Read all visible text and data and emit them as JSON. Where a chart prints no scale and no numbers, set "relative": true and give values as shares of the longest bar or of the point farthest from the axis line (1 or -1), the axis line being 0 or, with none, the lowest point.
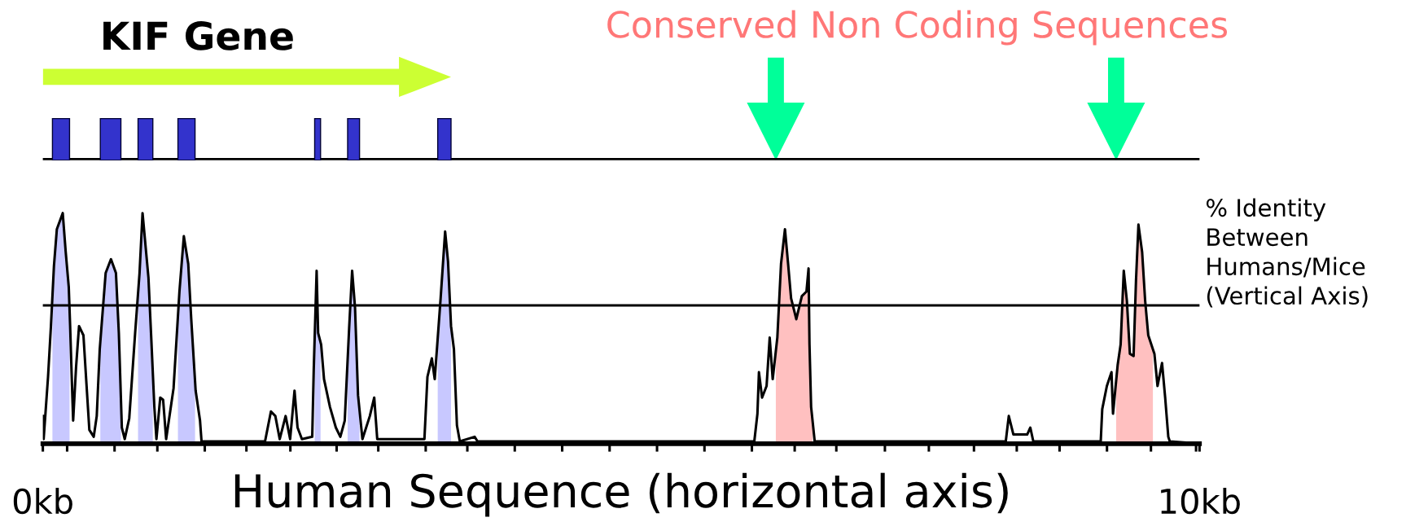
{
  "chart_data": {
    "type": "line",
    "relative": true,
    "tick_labels": "x",
    "grid": false,
    "xlabel": "Human Sequence (horizontal axis)",
    "ylabel": "% Identity\nBetween\nHumans/Mice\n(Vertical Axis)",
    "annotations": [
      "KIF Gene",
      "Conserved Non Coding Sequences"
    ],
    "xlim": [
      0,
      10
    ],
    "xticks": [
      {
        "value": 0,
        "label": "0kb"
      },
      {
        "value": 0.21,
        "label": null
      },
      {
        "value": 0.62,
        "label": null
      },
      {
        "value": 0.99,
        "label": null
      },
      {
        "value": 1.4,
        "label": null
      },
      {
        "value": 1.76,
        "label": null
      },
      {
        "value": 2.14,
        "label": null
      },
      {
        "value": 2.54,
        "label": null
      },
      {
        "value": 2.9,
        "label": null
      },
      {
        "value": 3.31,
        "label": null
      },
      {
        "value": 3.67,
        "label": null
      },
      {
        "value": 4.08,
        "label": null
      },
      {
        "value": 4.49,
        "label": null
      },
      {
        "value": 4.9,
        "label": null
      },
      {
        "value": 5.31,
        "label": null
      },
      {
        "value": 5.72,
        "label": null
      },
      {
        "value": 6.13,
        "label": null
      },
      {
        "value": 6.5,
        "label": null
      },
      {
        "value": 6.86,
        "label": null
      },
      {
        "value": 7.28,
        "label": null
      },
      {
        "value": 7.66,
        "label": null
      },
      {
        "value": 8.05,
        "label": null
      },
      {
        "value": 8.42,
        "label": null
      },
      {
        "value": 8.79,
        "label": null
      },
      {
        "value": 9.2,
        "label": null
      },
      {
        "value": 9.58,
        "label": null
      },
      {
        "value": 9.97,
        "label": null
      },
      {
        "value": 10,
        "label": "10kb"
      }
    ],
    "ref_lines": [
      {
        "axis": "y",
        "value": 0.6,
        "color": "#000000"
      }
    ],
    "series": [
      {
        "type": "area",
        "color": "#c8c8ff",
        "x": [
          0.083,
          0.096,
          0.121,
          0.172,
          0.198,
          0.224,
          0.231
        ],
        "values": [
          0.64,
          0.77,
          0.93,
          1.0,
          0.83,
          0.68,
          0.58
        ]
      },
      {
        "type": "area",
        "color": "#c8c8ff",
        "x": [
          0.497,
          0.543,
          0.589,
          0.632,
          0.657,
          0.675
        ],
        "values": [
          0.44,
          0.74,
          0.8,
          0.74,
          0.48,
          0.2
        ]
      },
      {
        "type": "area",
        "color": "#c8c8ff",
        "x": [
          0.823,
          0.836,
          0.862,
          0.913,
          0.938,
          0.951
        ],
        "values": [
          0.65,
          0.74,
          1.0,
          0.72,
          0.45,
          0.3
        ]
      },
      {
        "type": "area",
        "color": "#c8c8ff",
        "x": [
          1.168,
          1.181,
          1.219,
          1.257,
          1.283,
          1.316
        ],
        "values": [
          0.55,
          0.66,
          0.9,
          0.78,
          0.54,
          0.27
        ]
      },
      {
        "type": "area",
        "color": "#c8c8ff",
        "x": [
          2.35,
          2.367,
          2.38,
          2.401
        ],
        "values": [
          0.46,
          0.75,
          0.48,
          0.44
        ]
      },
      {
        "type": "area",
        "color": "#c8c8ff",
        "x": [
          2.635,
          2.648,
          2.674,
          2.699,
          2.725,
          2.738
        ],
        "values": [
          0.36,
          0.5,
          0.75,
          0.59,
          0.21,
          0.14
        ]
      },
      {
        "type": "area",
        "color": "#c8c8ff",
        "x": [
          3.414,
          3.439,
          3.478,
          3.503,
          3.529
        ],
        "values": [
          0.46,
          0.63,
          0.92,
          0.79,
          0.51
        ]
      },
      {
        "type": "area",
        "color": "#ffc0c0",
        "x": [
          6.337,
          6.35,
          6.382,
          6.416,
          6.443,
          6.469,
          6.514,
          6.562,
          6.602,
          6.62,
          6.628,
          6.642,
          6.655
        ],
        "values": [
          0.4,
          0.46,
          0.78,
          0.93,
          0.78,
          0.63,
          0.54,
          0.64,
          0.66,
          0.76,
          0.43,
          0.16,
          0.1
        ]
      },
      {
        "type": "area",
        "color": "#ffc0c0",
        "x": [
          9.279,
          9.292,
          9.318,
          9.345,
          9.372,
          9.398,
          9.43,
          9.451,
          9.472,
          9.504,
          9.53,
          9.557,
          9.597
        ],
        "values": [
          0.27,
          0.34,
          0.43,
          0.75,
          0.62,
          0.39,
          0.38,
          0.71,
          0.95,
          0.83,
          0.62,
          0.47,
          0.41
        ]
      },
      {
        "color": "#000000",
        "x": [
          0.0,
          0.007,
          0.045,
          0.07,
          0.096,
          0.121,
          0.172,
          0.198,
          0.224,
          0.236,
          0.249,
          0.262,
          0.287,
          0.313,
          0.351,
          0.377,
          0.402,
          0.44,
          0.466,
          0.492,
          0.543,
          0.589,
          0.632,
          0.657,
          0.683,
          0.708,
          0.747,
          0.798,
          0.836,
          0.862,
          0.913,
          0.938,
          0.964,
          0.982,
          1.015,
          1.04,
          1.066,
          1.13,
          1.181,
          1.219,
          1.257,
          1.283,
          1.321,
          1.359,
          1.372,
          1.921,
          1.972,
          2.01,
          2.048,
          2.099,
          2.138,
          2.176,
          2.202,
          2.24,
          2.329,
          2.342,
          2.367,
          2.38,
          2.406,
          2.431,
          2.482,
          2.533,
          2.572,
          2.61,
          2.648,
          2.674,
          2.699,
          2.725,
          2.763,
          2.827,
          2.865,
          2.891,
          3.299,
          3.325,
          3.363,
          3.388,
          3.439,
          3.478,
          3.503,
          3.529,
          3.554,
          3.58,
          3.605,
          3.733,
          3.758,
          6.151,
          6.178,
          6.191,
          6.218,
          6.257,
          6.284,
          6.31,
          6.35,
          6.382,
          6.416,
          6.443,
          6.469,
          6.514,
          6.562,
          6.602,
          6.62,
          6.628,
          6.642,
          6.673,
          8.325,
          8.351,
          8.391,
          8.51,
          8.537,
          8.563,
          9.146,
          9.159,
          9.199,
          9.239,
          9.252,
          9.292,
          9.318,
          9.345,
          9.372,
          9.398,
          9.43,
          9.451,
          9.472,
          9.504,
          9.53,
          9.557,
          9.61,
          9.637,
          9.676,
          9.703,
          9.73,
          9.743,
          10.0
        ],
        "values": [
          0.12,
          0.02,
          0.29,
          0.51,
          0.77,
          0.93,
          1.0,
          0.83,
          0.68,
          0.51,
          0.3,
          0.1,
          0.33,
          0.51,
          0.47,
          0.26,
          0.06,
          0.03,
          0.12,
          0.41,
          0.74,
          0.8,
          0.74,
          0.48,
          0.07,
          0.02,
          0.11,
          0.48,
          0.74,
          1.0,
          0.72,
          0.45,
          0.16,
          0.02,
          0.2,
          0.19,
          0.02,
          0.24,
          0.66,
          0.9,
          0.78,
          0.54,
          0.23,
          0.1,
          0.01,
          0.01,
          0.14,
          0.12,
          0.02,
          0.12,
          0.02,
          0.23,
          0.07,
          0.02,
          0.03,
          0.32,
          0.75,
          0.48,
          0.43,
          0.28,
          0.16,
          0.07,
          0.03,
          0.1,
          0.5,
          0.75,
          0.59,
          0.21,
          0.02,
          0.12,
          0.2,
          0.02,
          0.02,
          0.29,
          0.37,
          0.28,
          0.63,
          0.92,
          0.79,
          0.51,
          0.41,
          0.08,
          0.01,
          0.03,
          0.01,
          0.01,
          0.13,
          0.31,
          0.2,
          0.25,
          0.46,
          0.28,
          0.46,
          0.78,
          0.93,
          0.78,
          0.63,
          0.54,
          0.64,
          0.66,
          0.76,
          0.43,
          0.16,
          0.01,
          0.01,
          0.12,
          0.04,
          0.04,
          0.07,
          0.01,
          0.01,
          0.15,
          0.25,
          0.31,
          0.13,
          0.34,
          0.43,
          0.75,
          0.62,
          0.39,
          0.38,
          0.71,
          0.95,
          0.83,
          0.62,
          0.47,
          0.39,
          0.25,
          0.35,
          0.2,
          0.03,
          0.01,
          0.0
        ]
      }
    ]
  }
}
